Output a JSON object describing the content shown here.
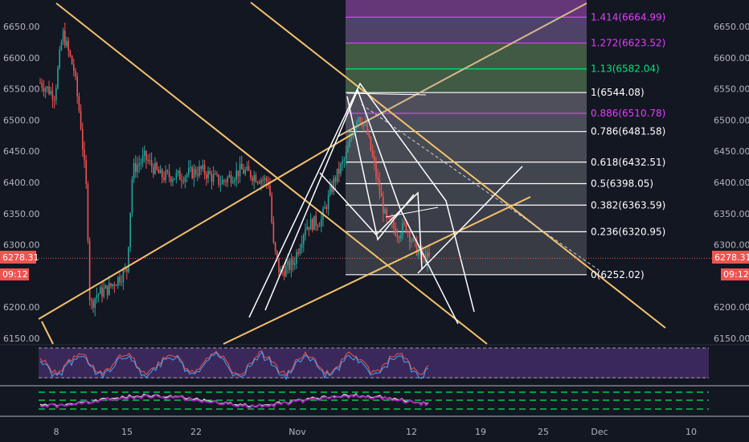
{
  "chart_data": {
    "type": "candlestick",
    "title": "",
    "price_axis": {
      "ticks": [
        "6650.00",
        "6600.00",
        "6550.00",
        "6500.00",
        "6450.00",
        "6400.00",
        "6350.00",
        "6300.00",
        "6200.00",
        "6150.00"
      ],
      "right_ticks": [
        "6650.00",
        "6600.00",
        "6550.00",
        "6500.00",
        "6450.00",
        "6400.00",
        "6350.00",
        "6300.00",
        "6200.00",
        "6150.00"
      ],
      "ylim": [
        6140,
        6690
      ]
    },
    "time_axis": {
      "ticks": [
        "8",
        "15",
        "22",
        "Nov",
        "12",
        "19",
        "25",
        "Dec",
        "10"
      ]
    },
    "current_price": {
      "value": "6278.31",
      "countdown": "09:12",
      "color": "#ef5350"
    },
    "fib_levels": [
      {
        "ratio": "1.414",
        "price": "6664.99",
        "text": "1.414(6664.99)",
        "color": "#e040fb"
      },
      {
        "ratio": "1.272",
        "price": "6623.52",
        "text": "1.272(6623.52)",
        "color": "#e040fb"
      },
      {
        "ratio": "1.13",
        "price": "6582.04",
        "text": "1.13(6582.04)",
        "color": "#00e676"
      },
      {
        "ratio": "1",
        "price": "6544.08",
        "text": "1(6544.08)",
        "color": "#ffffff"
      },
      {
        "ratio": "0.886",
        "price": "6510.78",
        "text": "0.886(6510.78)",
        "color": "#e040fb"
      },
      {
        "ratio": "0.786",
        "price": "6481.58",
        "text": "0.786(6481.58)",
        "color": "#ffffff"
      },
      {
        "ratio": "0.618",
        "price": "6432.51",
        "text": "0.618(6432.51)",
        "color": "#ffffff"
      },
      {
        "ratio": "0.5",
        "price": "6398.05",
        "text": "0.5(6398.05)",
        "color": "#ffffff"
      },
      {
        "ratio": "0.382",
        "price": "6363.59",
        "text": "0.382(6363.59)",
        "color": "#ffffff"
      },
      {
        "ratio": "0.236",
        "price": "6320.95",
        "text": "0.236(6320.95)",
        "color": "#ffffff"
      },
      {
        "ratio": "0",
        "price": "6252.02",
        "text": "0(6252.02)",
        "color": "#ffffff"
      }
    ],
    "colors": {
      "up": "#26a69a",
      "down": "#ef5350",
      "trendline": "#f5c26b",
      "pattern": "#ffffff",
      "background": "#131722",
      "rsi_band": "#4a2f6e",
      "stoch_guides": "#00c853"
    },
    "grid": false,
    "legend": "none"
  }
}
